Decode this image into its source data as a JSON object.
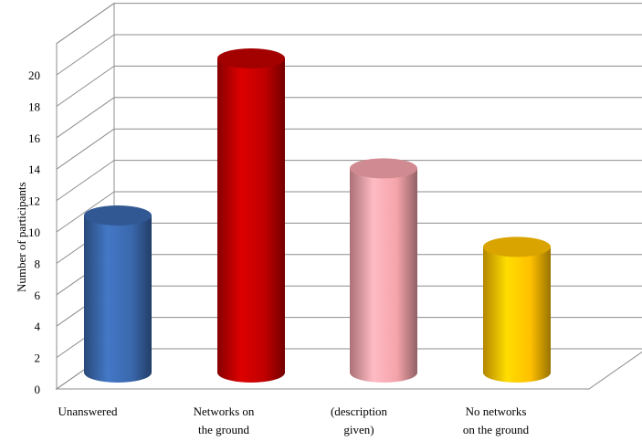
{
  "chart_data": {
    "type": "bar",
    "style": "3d-cylinder",
    "categories": [
      [
        "Unanswered"
      ],
      [
        "Networks on",
        "the ground"
      ],
      [
        "(description",
        "given)"
      ],
      [
        "No networks",
        "on the ground"
      ]
    ],
    "values": [
      10,
      20,
      13,
      8
    ],
    "colors": [
      "#3a68ad",
      "#c00000",
      "#f4a3aa",
      "#ffc000"
    ],
    "ylabel": "Number of participants",
    "yticks": [
      0,
      2,
      4,
      6,
      8,
      10,
      12,
      14,
      16,
      18,
      20
    ],
    "ylim": [
      0,
      22
    ],
    "grid": true,
    "legend": "none"
  }
}
